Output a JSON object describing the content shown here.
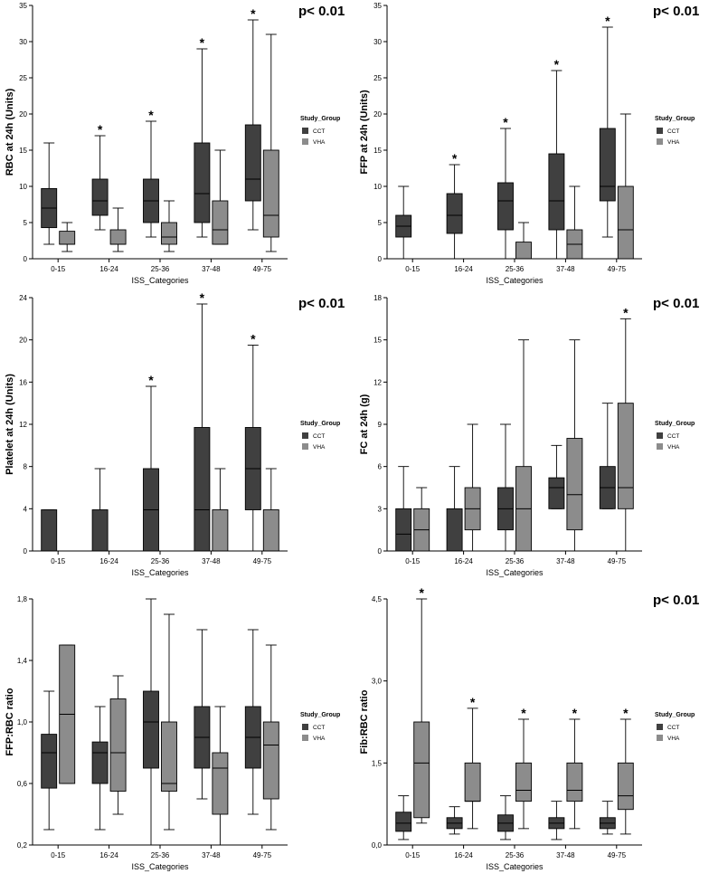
{
  "colors": {
    "cct": "#404040",
    "vha": "#8c8c8c",
    "axis": "#000000"
  },
  "chart_data": [
    {
      "type": "box",
      "id": "rbc",
      "ylabel": "RBC at 24h (Units)",
      "xlabel": "ISS_Categories",
      "ylim": [
        0,
        35
      ],
      "yticks": [
        0,
        5,
        10,
        15,
        20,
        25,
        30,
        35
      ],
      "ytick_labels": [
        "0",
        "5",
        "10",
        "15",
        "20",
        "25",
        "30",
        "35"
      ],
      "categories": [
        "0-15",
        "16-24",
        "25-36",
        "37-48",
        "49-75"
      ],
      "pvalue": "p< 0.01",
      "legend": {
        "title": "Study_Group",
        "entries": [
          "CCT",
          "VHA"
        ]
      },
      "series": [
        {
          "name": "CCT",
          "boxes": [
            [
              2,
              4.3,
              7,
              9.7,
              16
            ],
            [
              4,
              6,
              8,
              11,
              17
            ],
            [
              3,
              5,
              8,
              11,
              19
            ],
            [
              3,
              5,
              9,
              16,
              29
            ],
            [
              4,
              8,
              11,
              18.5,
              33
            ]
          ]
        },
        {
          "name": "VHA",
          "boxes": [
            [
              1,
              2,
              2,
              3.8,
              5
            ],
            [
              1,
              2,
              2,
              4,
              7
            ],
            [
              1,
              2,
              3,
              5,
              8
            ],
            [
              2,
              2,
              4,
              8,
              15
            ],
            [
              1,
              3,
              6,
              15,
              31
            ]
          ]
        }
      ],
      "significance": [
        "",
        "*",
        "*",
        "*",
        "*"
      ]
    },
    {
      "type": "box",
      "id": "ffp",
      "ylabel": "FFP at 24h (Units)",
      "xlabel": "ISS_Categories",
      "ylim": [
        0,
        35
      ],
      "yticks": [
        0,
        5,
        10,
        15,
        20,
        25,
        30,
        35
      ],
      "ytick_labels": [
        "0",
        "5",
        "10",
        "15",
        "20",
        "25",
        "30",
        "35"
      ],
      "categories": [
        "0-15",
        "16-24",
        "25-36",
        "37-48",
        "49-75"
      ],
      "pvalue": "p< 0.01",
      "legend": {
        "title": "Study_Group",
        "entries": [
          "CCT",
          "VHA"
        ]
      },
      "series": [
        {
          "name": "CCT",
          "boxes": [
            [
              0,
              3,
              4.5,
              6,
              10
            ],
            [
              0,
              3.5,
              6,
              9,
              13
            ],
            [
              0,
              4,
              8,
              10.5,
              18
            ],
            [
              0,
              4,
              8,
              14.5,
              26
            ],
            [
              3,
              8,
              10,
              18,
              32
            ]
          ]
        },
        {
          "name": "VHA",
          "boxes": [
            [
              0,
              0,
              0,
              0,
              0
            ],
            [
              0,
              0,
              0,
              0,
              0
            ],
            [
              0,
              0,
              0,
              2.3,
              5
            ],
            [
              0,
              0,
              2,
              4,
              10
            ],
            [
              0,
              0,
              4,
              10,
              20
            ]
          ]
        }
      ],
      "significance": [
        "",
        "*",
        "*",
        "*",
        "*"
      ]
    },
    {
      "type": "box",
      "id": "platelet",
      "ylabel": "Platelet at 24h (Units)",
      "xlabel": "ISS_Categories",
      "ylim": [
        0,
        24
      ],
      "yticks": [
        0,
        4,
        8,
        12,
        16,
        20,
        24
      ],
      "ytick_labels": [
        "0",
        "4",
        "8",
        "12",
        "16",
        "20",
        "24"
      ],
      "categories": [
        "0-15",
        "16-24",
        "25-36",
        "37-48",
        "49-75"
      ],
      "pvalue": "p< 0.01",
      "legend": {
        "title": "Study_Group",
        "entries": [
          "CCT",
          "VHA"
        ]
      },
      "series": [
        {
          "name": "CCT",
          "boxes": [
            [
              0,
              0,
              0,
              3.9,
              3.9
            ],
            [
              0,
              0,
              0,
              3.9,
              7.8
            ],
            [
              0,
              0,
              3.9,
              7.8,
              15.6
            ],
            [
              0,
              0,
              3.9,
              11.7,
              23.4
            ],
            [
              0,
              3.9,
              7.8,
              11.7,
              19.5
            ]
          ]
        },
        {
          "name": "VHA",
          "boxes": [
            [
              0,
              0,
              0,
              0,
              0
            ],
            [
              0,
              0,
              0,
              0,
              0
            ],
            [
              0,
              0,
              0,
              0,
              0
            ],
            [
              0,
              0,
              0,
              3.9,
              7.8
            ],
            [
              0,
              0,
              0,
              3.9,
              7.8
            ]
          ]
        }
      ],
      "significance": [
        "",
        "",
        "*",
        "*",
        "*"
      ]
    },
    {
      "type": "box",
      "id": "fc",
      "ylabel": "FC at 24h (g)",
      "xlabel": "ISS_Categories",
      "ylim": [
        0,
        18
      ],
      "yticks": [
        0,
        3,
        6,
        9,
        12,
        15,
        18
      ],
      "ytick_labels": [
        "0",
        "3",
        "6",
        "9",
        "12",
        "15",
        "18"
      ],
      "categories": [
        "0-15",
        "16-24",
        "25-36",
        "37-48",
        "49-75"
      ],
      "pvalue": "p< 0.01",
      "legend": {
        "title": "Study_Group",
        "entries": [
          "CCT",
          "VHA"
        ]
      },
      "series": [
        {
          "name": "CCT",
          "boxes": [
            [
              0,
              0,
              1.2,
              3,
              6
            ],
            [
              0,
              0,
              0,
              3,
              6
            ],
            [
              0,
              1.5,
              3,
              4.5,
              9
            ],
            [
              3,
              3,
              4.5,
              5.2,
              7.5
            ],
            [
              3,
              3,
              4.5,
              6,
              10.5
            ]
          ]
        },
        {
          "name": "VHA",
          "boxes": [
            [
              0,
              0,
              1.5,
              3,
              4.5
            ],
            [
              0,
              1.5,
              3,
              4.5,
              9
            ],
            [
              0,
              0,
              3,
              6,
              15
            ],
            [
              0,
              1.5,
              4,
              8,
              15
            ],
            [
              0,
              3,
              4.5,
              10.5,
              16.5
            ]
          ]
        }
      ],
      "significance": [
        "",
        "",
        "",
        "",
        "*"
      ]
    },
    {
      "type": "box",
      "id": "ffp_rbc",
      "ylabel": "FFP:RBC ratio",
      "xlabel": "ISS_Categories",
      "ylim": [
        0.2,
        1.8
      ],
      "yticks": [
        0.2,
        0.6,
        1.0,
        1.4,
        1.8
      ],
      "ytick_labels": [
        "0,2",
        "0,6",
        "1,0",
        "1,4",
        "1,8"
      ],
      "categories": [
        "0-15",
        "16-24",
        "25-36",
        "37-48",
        "49-75"
      ],
      "pvalue": "",
      "legend": {
        "title": "Study_Group",
        "entries": [
          "CCT",
          "VHA"
        ]
      },
      "series": [
        {
          "name": "CCT",
          "boxes": [
            [
              0.3,
              0.57,
              0.8,
              0.92,
              1.2
            ],
            [
              0.3,
              0.6,
              0.8,
              0.87,
              1.1
            ],
            [
              0.2,
              0.7,
              1.0,
              1.2,
              1.8
            ],
            [
              0.5,
              0.7,
              0.9,
              1.1,
              1.6
            ],
            [
              0.4,
              0.7,
              0.9,
              1.1,
              1.6
            ]
          ]
        },
        {
          "name": "VHA",
          "boxes": [
            [
              0.6,
              0.6,
              1.05,
              1.5,
              1.5
            ],
            [
              0.4,
              0.55,
              0.8,
              1.15,
              1.3
            ],
            [
              0.3,
              0.55,
              0.6,
              1.0,
              1.7
            ],
            [
              0.2,
              0.4,
              0.7,
              0.8,
              1.1
            ],
            [
              0.3,
              0.5,
              0.85,
              1.0,
              1.5
            ]
          ]
        }
      ],
      "significance": [
        "",
        "",
        "",
        "",
        ""
      ]
    },
    {
      "type": "box",
      "id": "fib_rbc",
      "ylabel": "Fib:RBC ratio",
      "xlabel": "ISS_Categories",
      "ylim": [
        0,
        4.5
      ],
      "yticks": [
        0,
        1.5,
        3.0,
        4.5
      ],
      "ytick_labels": [
        "0,0",
        "1,5",
        "3,0",
        "4,5"
      ],
      "categories": [
        "0-15",
        "16-24",
        "25-36",
        "37-48",
        "49-75"
      ],
      "pvalue": "p< 0.01",
      "legend": {
        "title": "Study_Group",
        "entries": [
          "CCT",
          "VHA"
        ]
      },
      "series": [
        {
          "name": "CCT",
          "boxes": [
            [
              0.1,
              0.25,
              0.4,
              0.6,
              0.9
            ],
            [
              0.2,
              0.3,
              0.4,
              0.5,
              0.7
            ],
            [
              0.1,
              0.25,
              0.4,
              0.55,
              0.9
            ],
            [
              0.1,
              0.3,
              0.4,
              0.5,
              0.8
            ],
            [
              0.2,
              0.3,
              0.4,
              0.5,
              0.8
            ]
          ]
        },
        {
          "name": "VHA",
          "boxes": [
            [
              0.4,
              0.5,
              1.5,
              2.25,
              4.5
            ],
            [
              0.3,
              0.8,
              0.8,
              1.5,
              2.5
            ],
            [
              0.3,
              0.8,
              1.0,
              1.5,
              2.3
            ],
            [
              0.3,
              0.8,
              1.0,
              1.5,
              2.3
            ],
            [
              0.2,
              0.65,
              0.9,
              1.5,
              2.3
            ]
          ]
        }
      ],
      "significance": [
        "*",
        "*",
        "*",
        "*",
        "*"
      ]
    }
  ]
}
